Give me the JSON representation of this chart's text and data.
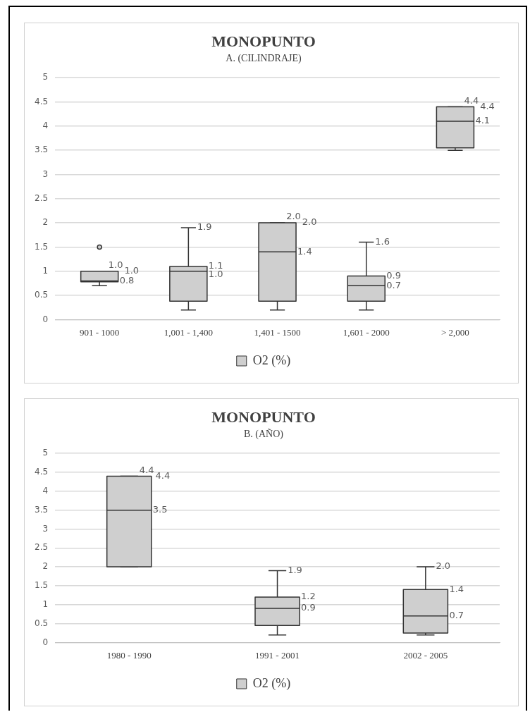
{
  "chart_data": [
    {
      "type": "box",
      "title": "MONOPUNTO",
      "subtitle": "A. (CILINDRAJE)",
      "categories": [
        "901 - 1000",
        "1,001 - 1,400",
        "1,401 - 1500",
        "1,601 - 2000",
        "> 2,000"
      ],
      "series": [
        {
          "name": "O2 (%)",
          "color": "#cfcfcf",
          "boxes": [
            {
              "low": 0.7,
              "q1": 0.78,
              "median": 0.8,
              "q3": 1.0,
              "high": 1.0,
              "outliers": [
                1.5
              ]
            },
            {
              "low": 0.2,
              "q1": 0.38,
              "median": 1.0,
              "q3": 1.1,
              "high": 1.9
            },
            {
              "low": 0.2,
              "q1": 0.38,
              "median": 1.4,
              "q3": 2.0,
              "high": 2.0
            },
            {
              "low": 0.2,
              "q1": 0.38,
              "median": 0.7,
              "q3": 0.9,
              "high": 1.6
            },
            {
              "low": 3.5,
              "q1": 3.55,
              "median": 4.1,
              "q3": 4.4,
              "high": 4.4
            }
          ]
        }
      ],
      "ylim": [
        0,
        5
      ],
      "yticks": [
        0,
        0.5,
        1,
        1.5,
        2,
        2.5,
        3,
        3.5,
        4,
        4.5,
        5
      ],
      "grid": "y",
      "legend": "bottom",
      "annotations": [
        {
          "text": "1.0",
          "x": "901 - 1000",
          "y": 1.0
        },
        {
          "text": "1.0",
          "x": "901 - 1000",
          "y": 1.0
        },
        {
          "text": "0.8",
          "x": "901 - 1000",
          "y": 0.8
        },
        {
          "text": "1.9",
          "x": "1,001 - 1,400",
          "y": 1.9
        },
        {
          "text": "1.1",
          "x": "1,001 - 1,400",
          "y": 1.1
        },
        {
          "text": "1.0",
          "x": "1,001 - 1,400",
          "y": 1.0
        },
        {
          "text": "2.0",
          "x": "1,401 - 1500",
          "y": 2.0
        },
        {
          "text": "2.0",
          "x": "1,401 - 1500",
          "y": 2.0
        },
        {
          "text": "1.4",
          "x": "1,401 - 1500",
          "y": 1.4
        },
        {
          "text": "1.6",
          "x": "1,601 - 2000",
          "y": 1.6
        },
        {
          "text": "0.9",
          "x": "1,601 - 2000",
          "y": 0.9
        },
        {
          "text": "0.7",
          "x": "1,601 - 2000",
          "y": 0.7
        },
        {
          "text": "4.4",
          "x": "> 2,000",
          "y": 4.4
        },
        {
          "text": "4.4",
          "x": "> 2,000",
          "y": 4.4
        },
        {
          "text": "4.1",
          "x": "> 2,000",
          "y": 4.1
        }
      ]
    },
    {
      "type": "box",
      "title": "MONOPUNTO",
      "subtitle": "B. (AÑO)",
      "categories": [
        "1980 - 1990",
        "1991 - 2001",
        "2002 - 2005"
      ],
      "series": [
        {
          "name": "O2 (%)",
          "color": "#cfcfcf",
          "boxes": [
            {
              "low": 2.0,
              "q1": 2.0,
              "median": 3.5,
              "q3": 4.4,
              "high": 4.4
            },
            {
              "low": 0.2,
              "q1": 0.45,
              "median": 0.9,
              "q3": 1.2,
              "high": 1.9
            },
            {
              "low": 0.2,
              "q1": 0.25,
              "median": 0.7,
              "q3": 1.4,
              "high": 2.0
            }
          ]
        }
      ],
      "ylim": [
        0,
        5
      ],
      "yticks": [
        0,
        0.5,
        1,
        1.5,
        2,
        2.5,
        3,
        3.5,
        4,
        4.5,
        5
      ],
      "grid": "y",
      "legend": "bottom",
      "annotations": [
        {
          "text": "4.4",
          "x": "1980 - 1990",
          "y": 4.4
        },
        {
          "text": "4.4",
          "x": "1980 - 1990",
          "y": 4.4
        },
        {
          "text": "3.5",
          "x": "1980 - 1990",
          "y": 3.5
        },
        {
          "text": "1.9",
          "x": "1991 - 2001",
          "y": 1.9
        },
        {
          "text": "1.2",
          "x": "1991 - 2001",
          "y": 1.2
        },
        {
          "text": "0.9",
          "x": "1991 - 2001",
          "y": 0.9
        },
        {
          "text": "2.0",
          "x": "2002 - 2005",
          "y": 2.0
        },
        {
          "text": "1.4",
          "x": "2002 - 2005",
          "y": 1.4
        },
        {
          "text": "0.7",
          "x": "2002 - 2005",
          "y": 0.7
        }
      ]
    }
  ]
}
